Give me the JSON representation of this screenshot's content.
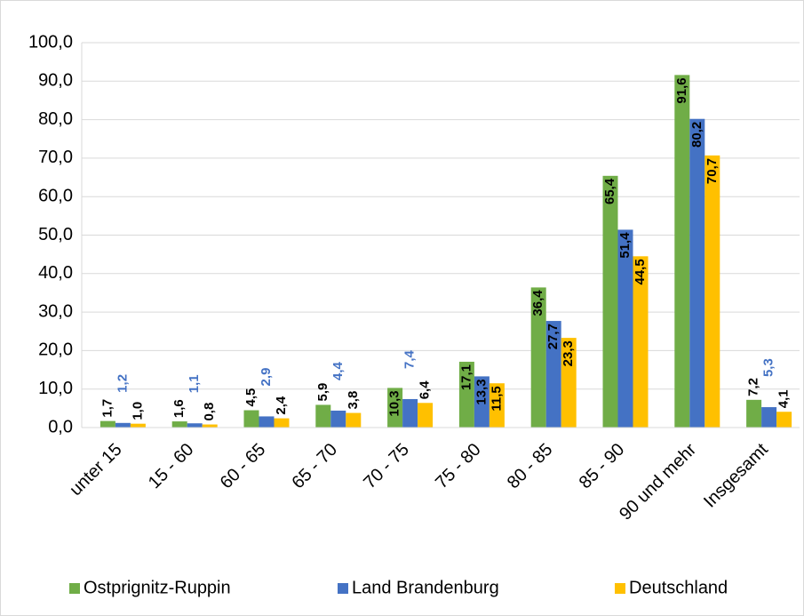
{
  "chart_data": {
    "type": "bar",
    "categories": [
      "unter 15",
      "15 - 60",
      "60 - 65",
      "65 - 70",
      "70 - 75",
      "75 - 80",
      "80 - 85",
      "85 - 90",
      "90  und mehr",
      "Insgesamt"
    ],
    "series": [
      {
        "name": "Ostprignitz-Ruppin",
        "color": "#70ad47",
        "values": [
          1.7,
          1.6,
          4.5,
          5.9,
          10.3,
          17.1,
          36.4,
          65.4,
          91.6,
          7.2
        ],
        "value_labels": [
          "1,7",
          "1,6",
          "4,5",
          "5,9",
          "10,3",
          "17,1",
          "36,4",
          "65,4",
          "91,6",
          "7,2"
        ]
      },
      {
        "name": "Land Brandenburg",
        "color": "#4472c4",
        "values": [
          1.2,
          1.1,
          2.9,
          4.4,
          7.4,
          13.3,
          27.7,
          51.4,
          80.2,
          5.3
        ],
        "value_labels": [
          "1,2",
          "1,1",
          "2,9",
          "4,4",
          "7,4",
          "13,3",
          "27,7",
          "51,4",
          "80,2",
          "5,3"
        ]
      },
      {
        "name": "Deutschland",
        "color": "#ffc000",
        "values": [
          1.0,
          0.8,
          2.4,
          3.8,
          6.4,
          11.5,
          23.3,
          44.5,
          70.7,
          4.1
        ],
        "value_labels": [
          "1,0",
          "0,8",
          "2,4",
          "3,8",
          "6,4",
          "11,5",
          "23,3",
          "44,5",
          "70,7",
          "4,1"
        ]
      }
    ],
    "ylim": [
      0,
      100
    ],
    "yticks": [
      {
        "value": 0,
        "label": "0,0"
      },
      {
        "value": 10,
        "label": "10,0"
      },
      {
        "value": 20,
        "label": "20,0"
      },
      {
        "value": 30,
        "label": "30,0"
      },
      {
        "value": 40,
        "label": "40,0"
      },
      {
        "value": 50,
        "label": "50,0"
      },
      {
        "value": 60,
        "label": "60,0"
      },
      {
        "value": 70,
        "label": "70,0"
      },
      {
        "value": 80,
        "label": "80,0"
      },
      {
        "value": 90,
        "label": "90,0"
      },
      {
        "value": 100,
        "label": "100,0"
      }
    ],
    "grid": true,
    "legend": "bottom"
  }
}
